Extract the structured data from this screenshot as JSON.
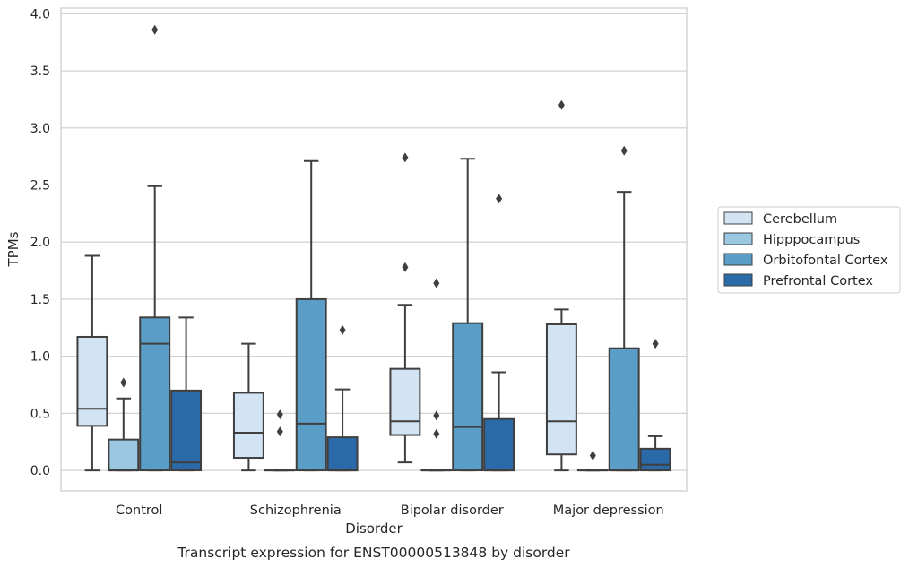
{
  "chart_data": {
    "type": "box",
    "title": "",
    "caption": "Transcript expression for ENST00000513848 by disorder",
    "xlabel": "Disorder",
    "ylabel": "TPMs",
    "ylim": [
      -0.18,
      4.05
    ],
    "yticks": [
      0.0,
      0.5,
      1.0,
      1.5,
      2.0,
      2.5,
      3.0,
      3.5,
      4.0
    ],
    "ytick_labels": [
      "0.0",
      "0.5",
      "1.0",
      "1.5",
      "2.0",
      "2.5",
      "3.0",
      "3.5",
      "4.0"
    ],
    "grid": "horizontal",
    "legend_position": "outside-right",
    "categories": [
      "Control",
      "Schizophrenia",
      "Bipolar disorder",
      "Major depression"
    ],
    "series": [
      {
        "name": "Cerebellum",
        "color": "#d2e3f3",
        "boxes": [
          {
            "whisker_low": 0.0,
            "q1": 0.39,
            "median": 0.54,
            "q3": 1.17,
            "whisker_high": 1.88,
            "outliers": []
          },
          {
            "whisker_low": 0.0,
            "q1": 0.11,
            "median": 0.33,
            "q3": 0.68,
            "whisker_high": 1.11,
            "outliers": []
          },
          {
            "whisker_low": 0.07,
            "q1": 0.31,
            "median": 0.43,
            "q3": 0.89,
            "whisker_high": 1.45,
            "outliers": [
              1.78,
              2.74
            ]
          },
          {
            "whisker_low": 0.0,
            "q1": 0.14,
            "median": 0.43,
            "q3": 1.28,
            "whisker_high": 1.41,
            "outliers": [
              3.2
            ]
          }
        ]
      },
      {
        "name": "Hipppocampus",
        "color": "#9ac8e0",
        "boxes": [
          {
            "whisker_low": 0.0,
            "q1": 0.0,
            "median": 0.0,
            "q3": 0.27,
            "whisker_high": 0.63,
            "outliers": [
              0.77
            ]
          },
          {
            "whisker_low": 0.0,
            "q1": 0.0,
            "median": 0.0,
            "q3": 0.0,
            "whisker_high": 0.0,
            "outliers": [
              0.34,
              0.49
            ]
          },
          {
            "whisker_low": 0.0,
            "q1": 0.0,
            "median": 0.0,
            "q3": 0.0,
            "whisker_high": 0.0,
            "outliers": [
              0.32,
              0.48,
              1.64
            ]
          },
          {
            "whisker_low": 0.0,
            "q1": 0.0,
            "median": 0.0,
            "q3": 0.0,
            "whisker_high": 0.0,
            "outliers": [
              0.13
            ]
          }
        ]
      },
      {
        "name": "Orbitofontal Cortex",
        "color": "#5a9ec8",
        "boxes": [
          {
            "whisker_low": 0.0,
            "q1": 0.0,
            "median": 1.11,
            "q3": 1.34,
            "whisker_high": 2.49,
            "outliers": [
              3.86
            ]
          },
          {
            "whisker_low": 0.0,
            "q1": 0.0,
            "median": 0.41,
            "q3": 1.5,
            "whisker_high": 2.71,
            "outliers": []
          },
          {
            "whisker_low": 0.0,
            "q1": 0.0,
            "median": 0.38,
            "q3": 1.29,
            "whisker_high": 2.73,
            "outliers": []
          },
          {
            "whisker_low": 0.0,
            "q1": 0.0,
            "median": 0.0,
            "q3": 1.07,
            "whisker_high": 2.44,
            "outliers": [
              2.8
            ]
          }
        ]
      },
      {
        "name": "Prefrontal Cortex",
        "color": "#2b6aa8",
        "boxes": [
          {
            "whisker_low": 0.0,
            "q1": 0.0,
            "median": 0.07,
            "q3": 0.7,
            "whisker_high": 1.34,
            "outliers": []
          },
          {
            "whisker_low": 0.0,
            "q1": 0.0,
            "median": 0.0,
            "q3": 0.29,
            "whisker_high": 0.71,
            "outliers": [
              1.23
            ]
          },
          {
            "whisker_low": 0.0,
            "q1": 0.0,
            "median": 0.0,
            "q3": 0.45,
            "whisker_high": 0.86,
            "outliers": [
              2.38
            ]
          },
          {
            "whisker_low": 0.0,
            "q1": 0.0,
            "median": 0.05,
            "q3": 0.19,
            "whisker_high": 0.3,
            "outliers": [
              1.11
            ]
          }
        ]
      }
    ]
  }
}
